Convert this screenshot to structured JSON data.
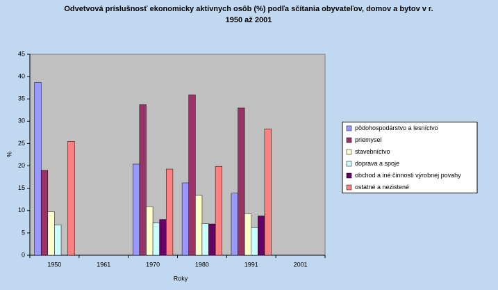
{
  "chart_data": {
    "type": "bar",
    "title": [
      "Odvetvová príslušnosť ekonomicky aktívnych osôb (%) podľa sčítania obyvateľov, domov a bytov v r.",
      "1950 až 2001"
    ],
    "x_label": "Roky",
    "y_label": "%",
    "categories": [
      "1950",
      "1961",
      "1970",
      "1980",
      "1991",
      "2001"
    ],
    "series": [
      {
        "name": "pôdohospodárstvo a lesníctvo",
        "color": "#9999ff",
        "values": [
          38.7,
          null,
          20.4,
          16.2,
          13.9,
          null
        ]
      },
      {
        "name": "priemysel",
        "color": "#993366",
        "values": [
          19.0,
          null,
          33.7,
          35.9,
          33.0,
          null
        ]
      },
      {
        "name": "stavebníctvo",
        "color": "#ffffcc",
        "values": [
          9.7,
          null,
          10.9,
          13.4,
          9.3,
          null
        ]
      },
      {
        "name": "doprava a spoje",
        "color": "#ccffff",
        "values": [
          6.8,
          null,
          7.2,
          7.1,
          6.2,
          null
        ]
      },
      {
        "name": "obchod a iné činnosti výrobnej povahy",
        "color": "#660066",
        "values": [
          null,
          null,
          8.0,
          7.0,
          8.8,
          null
        ]
      },
      {
        "name": "ostatné a nezistené",
        "color": "#ff8080",
        "values": [
          25.5,
          null,
          19.3,
          19.9,
          28.3,
          null
        ]
      }
    ],
    "ylim": [
      0,
      45
    ],
    "yticks": [
      0,
      5,
      10,
      15,
      20,
      25,
      30,
      35,
      40,
      45
    ],
    "grid": false,
    "legend": "right"
  }
}
